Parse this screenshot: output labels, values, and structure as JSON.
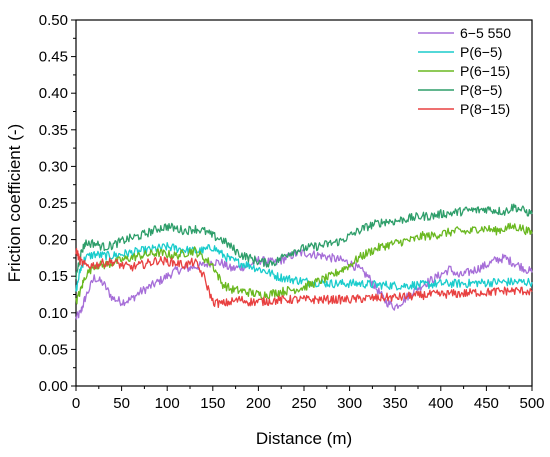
{
  "chart_data": {
    "type": "line",
    "xlabel": "Distance (m)",
    "ylabel": "Friction coefficient (-)",
    "xlim": [
      0,
      500
    ],
    "ylim": [
      0,
      0.5
    ],
    "x_ticks": [
      "0",
      "50",
      "100",
      "150",
      "200",
      "250",
      "300",
      "350",
      "400",
      "450",
      "500"
    ],
    "y_ticks": [
      "0.00",
      "0.05",
      "0.10",
      "0.15",
      "0.20",
      "0.25",
      "0.30",
      "0.35",
      "0.40",
      "0.45",
      "0.50"
    ],
    "legend_position": "top-right",
    "grid": false,
    "series": [
      {
        "name": "6−5 550",
        "color": "#A66ED8",
        "x": [
          0,
          5,
          10,
          20,
          30,
          40,
          50,
          60,
          70,
          80,
          90,
          100,
          110,
          120,
          130,
          140,
          150,
          160,
          170,
          180,
          190,
          200,
          210,
          220,
          230,
          240,
          250,
          260,
          270,
          280,
          290,
          300,
          310,
          320,
          330,
          340,
          350,
          360,
          370,
          380,
          390,
          400,
          410,
          420,
          430,
          440,
          450,
          460,
          470,
          480,
          490,
          500
        ],
        "y": [
          0.093,
          0.1,
          0.12,
          0.148,
          0.14,
          0.12,
          0.115,
          0.118,
          0.128,
          0.135,
          0.142,
          0.15,
          0.158,
          0.16,
          0.163,
          0.165,
          0.17,
          0.168,
          0.16,
          0.162,
          0.165,
          0.172,
          0.17,
          0.168,
          0.175,
          0.18,
          0.182,
          0.18,
          0.178,
          0.175,
          0.172,
          0.168,
          0.16,
          0.15,
          0.132,
          0.115,
          0.108,
          0.118,
          0.13,
          0.138,
          0.145,
          0.152,
          0.16,
          0.15,
          0.155,
          0.16,
          0.165,
          0.172,
          0.175,
          0.168,
          0.162,
          0.155
        ]
      },
      {
        "name": "P(6−5)",
        "color": "#1ACCCC",
        "x": [
          0,
          5,
          10,
          20,
          30,
          40,
          50,
          60,
          70,
          80,
          90,
          100,
          110,
          120,
          130,
          140,
          150,
          160,
          170,
          180,
          190,
          200,
          210,
          220,
          230,
          240,
          250,
          260,
          270,
          280,
          290,
          300,
          310,
          320,
          330,
          340,
          350,
          360,
          370,
          380,
          390,
          400,
          410,
          420,
          430,
          440,
          450,
          460,
          470,
          480,
          490,
          500
        ],
        "y": [
          0.13,
          0.16,
          0.175,
          0.18,
          0.178,
          0.178,
          0.18,
          0.182,
          0.184,
          0.186,
          0.188,
          0.19,
          0.188,
          0.186,
          0.184,
          0.185,
          0.19,
          0.18,
          0.172,
          0.168,
          0.165,
          0.16,
          0.156,
          0.15,
          0.147,
          0.145,
          0.143,
          0.142,
          0.141,
          0.14,
          0.14,
          0.14,
          0.14,
          0.139,
          0.138,
          0.138,
          0.137,
          0.137,
          0.138,
          0.138,
          0.139,
          0.14,
          0.14,
          0.14,
          0.14,
          0.141,
          0.141,
          0.142,
          0.142,
          0.142,
          0.142,
          0.142
        ]
      },
      {
        "name": "P(6−15)",
        "color": "#6AB820",
        "x": [
          0,
          5,
          10,
          20,
          30,
          40,
          50,
          60,
          70,
          80,
          90,
          100,
          110,
          120,
          130,
          140,
          150,
          160,
          170,
          180,
          190,
          200,
          210,
          220,
          230,
          240,
          250,
          260,
          270,
          280,
          290,
          300,
          310,
          320,
          330,
          340,
          350,
          360,
          370,
          380,
          390,
          400,
          410,
          420,
          430,
          440,
          450,
          460,
          470,
          480,
          490,
          500
        ],
        "y": [
          0.115,
          0.13,
          0.15,
          0.165,
          0.165,
          0.168,
          0.172,
          0.175,
          0.178,
          0.18,
          0.182,
          0.18,
          0.178,
          0.182,
          0.185,
          0.175,
          0.165,
          0.14,
          0.132,
          0.13,
          0.128,
          0.125,
          0.125,
          0.128,
          0.13,
          0.132,
          0.135,
          0.14,
          0.145,
          0.15,
          0.158,
          0.165,
          0.175,
          0.182,
          0.188,
          0.192,
          0.195,
          0.198,
          0.2,
          0.205,
          0.205,
          0.208,
          0.21,
          0.212,
          0.21,
          0.215,
          0.215,
          0.212,
          0.215,
          0.218,
          0.215,
          0.208
        ]
      },
      {
        "name": "P(8−5)",
        "color": "#2E9E6A",
        "x": [
          0,
          5,
          10,
          20,
          30,
          40,
          50,
          60,
          70,
          80,
          90,
          100,
          110,
          120,
          130,
          140,
          150,
          160,
          170,
          180,
          190,
          200,
          210,
          220,
          230,
          240,
          250,
          260,
          270,
          280,
          290,
          300,
          310,
          320,
          330,
          340,
          350,
          360,
          370,
          380,
          390,
          400,
          410,
          420,
          430,
          440,
          450,
          460,
          470,
          480,
          490,
          500
        ],
        "y": [
          0.15,
          0.18,
          0.195,
          0.195,
          0.19,
          0.192,
          0.198,
          0.202,
          0.205,
          0.21,
          0.215,
          0.218,
          0.215,
          0.212,
          0.215,
          0.212,
          0.205,
          0.2,
          0.19,
          0.18,
          0.175,
          0.17,
          0.168,
          0.17,
          0.18,
          0.185,
          0.188,
          0.19,
          0.192,
          0.195,
          0.198,
          0.205,
          0.212,
          0.218,
          0.222,
          0.225,
          0.225,
          0.228,
          0.23,
          0.232,
          0.232,
          0.235,
          0.236,
          0.238,
          0.24,
          0.24,
          0.242,
          0.24,
          0.238,
          0.245,
          0.24,
          0.235
        ]
      },
      {
        "name": "P(8−15)",
        "color": "#E84040",
        "x": [
          0,
          5,
          10,
          20,
          30,
          40,
          50,
          60,
          70,
          80,
          90,
          100,
          110,
          120,
          130,
          140,
          150,
          160,
          170,
          180,
          190,
          200,
          210,
          220,
          230,
          240,
          250,
          260,
          270,
          280,
          290,
          300,
          310,
          320,
          330,
          340,
          350,
          360,
          370,
          380,
          390,
          400,
          410,
          420,
          430,
          440,
          450,
          460,
          470,
          480,
          490,
          500
        ],
        "y": [
          0.185,
          0.17,
          0.165,
          0.165,
          0.168,
          0.17,
          0.165,
          0.162,
          0.165,
          0.168,
          0.172,
          0.17,
          0.168,
          0.165,
          0.17,
          0.15,
          0.115,
          0.112,
          0.115,
          0.118,
          0.115,
          0.115,
          0.116,
          0.117,
          0.118,
          0.118,
          0.118,
          0.118,
          0.118,
          0.118,
          0.118,
          0.118,
          0.119,
          0.12,
          0.12,
          0.121,
          0.121,
          0.122,
          0.123,
          0.124,
          0.125,
          0.125,
          0.126,
          0.126,
          0.127,
          0.128,
          0.128,
          0.129,
          0.13,
          0.13,
          0.13,
          0.129
        ]
      }
    ]
  }
}
